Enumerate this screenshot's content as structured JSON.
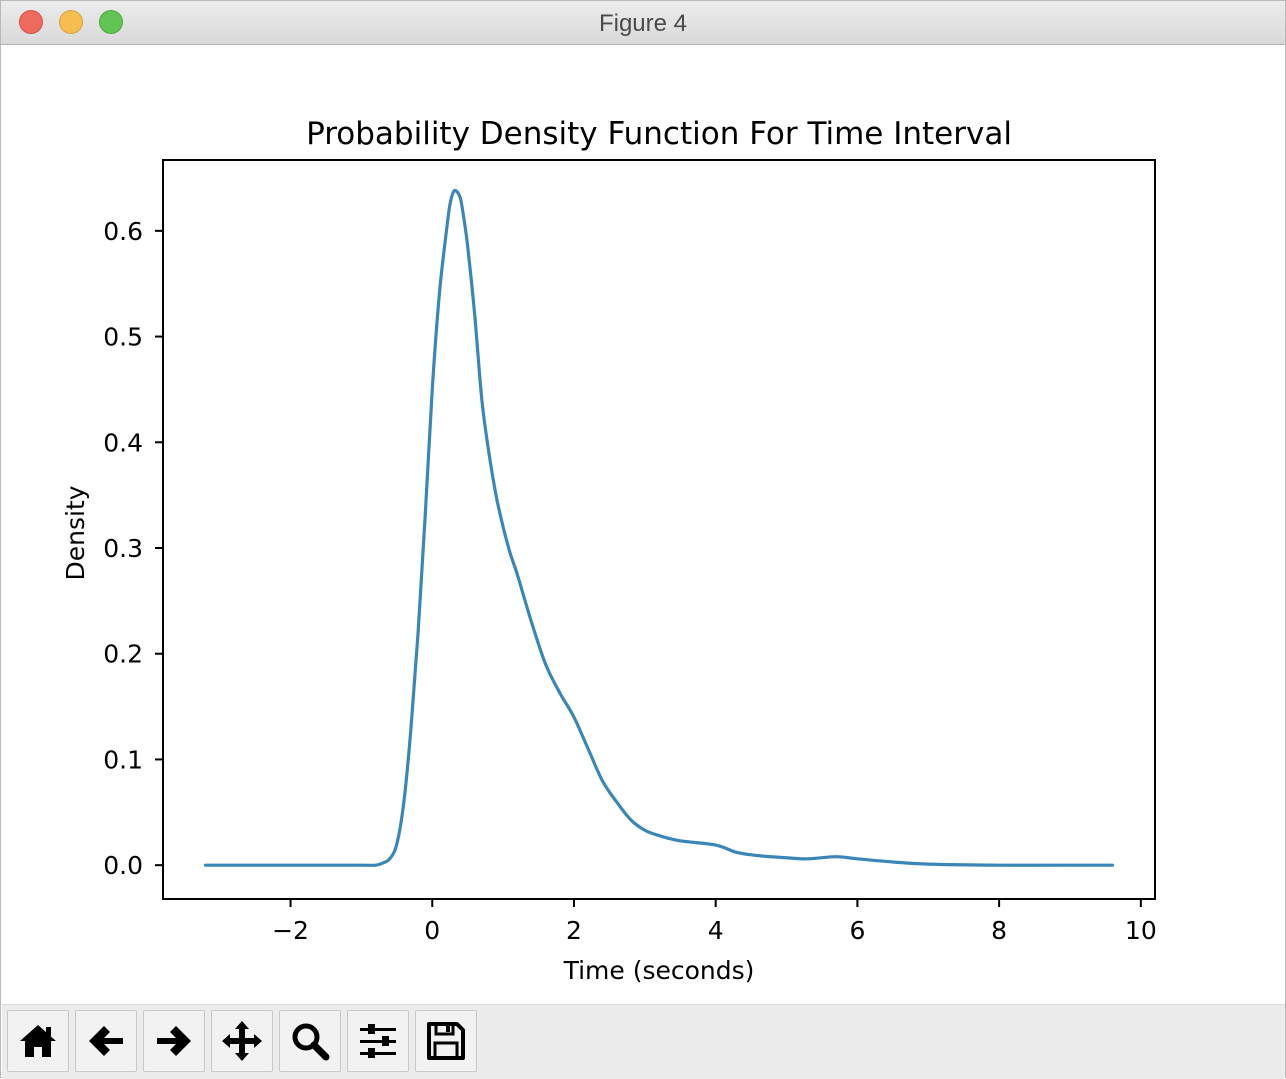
{
  "window": {
    "title": "Figure 4"
  },
  "toolbar": {
    "buttons": [
      {
        "name": "home-button",
        "icon": "home-icon"
      },
      {
        "name": "back-button",
        "icon": "arrow-left-icon"
      },
      {
        "name": "forward-button",
        "icon": "arrow-right-icon"
      },
      {
        "name": "pan-button",
        "icon": "move-icon"
      },
      {
        "name": "zoom-button",
        "icon": "magnifier-icon"
      },
      {
        "name": "configure-subplots-button",
        "icon": "sliders-icon"
      },
      {
        "name": "save-button",
        "icon": "floppy-disk-icon"
      }
    ]
  },
  "chart_data": {
    "type": "line",
    "title": "Probability Density Function For Time Interval",
    "xlabel": "Time (seconds)",
    "ylabel": "Density",
    "xlim": [
      -3.8,
      10.2
    ],
    "ylim": [
      -0.032,
      0.667
    ],
    "xticks": [
      -2,
      0,
      2,
      4,
      6,
      8,
      10
    ],
    "xtick_labels": [
      "−2",
      "0",
      "2",
      "4",
      "6",
      "8",
      "10"
    ],
    "yticks": [
      0.0,
      0.1,
      0.2,
      0.3,
      0.4,
      0.5,
      0.6
    ],
    "ytick_labels": [
      "0.0",
      "0.1",
      "0.2",
      "0.3",
      "0.4",
      "0.5",
      "0.6"
    ],
    "grid": false,
    "line_color": "#3b86b8",
    "series": [
      {
        "x": [
          -3.2,
          -2.0,
          -1.0,
          -0.8,
          -0.7,
          -0.6,
          -0.5,
          -0.4,
          -0.3,
          -0.2,
          -0.1,
          0.0,
          0.1,
          0.2,
          0.25,
          0.3,
          0.35,
          0.4,
          0.45,
          0.5,
          0.6,
          0.7,
          0.8,
          0.9,
          1.0,
          1.1,
          1.2,
          1.4,
          1.6,
          1.8,
          2.0,
          2.2,
          2.4,
          2.6,
          2.8,
          3.0,
          3.2,
          3.5,
          4.0,
          4.3,
          4.6,
          5.0,
          5.3,
          5.7,
          6.0,
          6.5,
          7.0,
          8.0,
          9.0,
          9.6
        ],
        "y": [
          0.0,
          0.0,
          0.0,
          0.0,
          0.002,
          0.006,
          0.02,
          0.06,
          0.13,
          0.22,
          0.33,
          0.45,
          0.54,
          0.6,
          0.625,
          0.637,
          0.637,
          0.63,
          0.61,
          0.585,
          0.52,
          0.44,
          0.39,
          0.35,
          0.32,
          0.295,
          0.275,
          0.23,
          0.19,
          0.163,
          0.14,
          0.11,
          0.08,
          0.06,
          0.043,
          0.033,
          0.028,
          0.023,
          0.019,
          0.012,
          0.009,
          0.007,
          0.006,
          0.008,
          0.006,
          0.003,
          0.001,
          0.0,
          0.0,
          0.0
        ]
      }
    ]
  }
}
